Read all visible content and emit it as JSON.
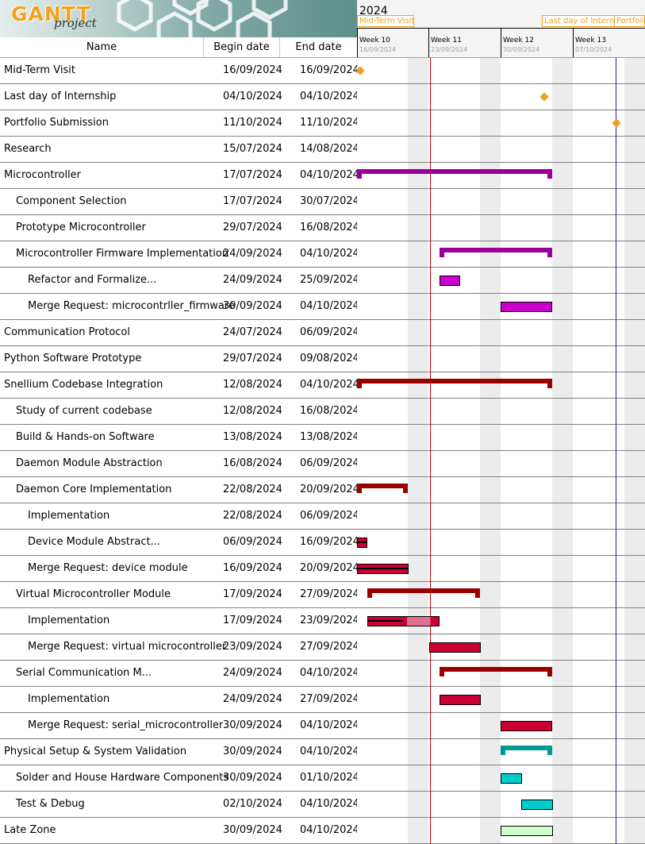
{
  "logo": {
    "title": "GANTT",
    "subtitle": "project"
  },
  "columns": {
    "name": "Name",
    "begin": "Begin date",
    "end": "End date"
  },
  "timeline": {
    "year": "2024",
    "milestone_tags": [
      "Mid-Term Visit",
      "Last day of Interns",
      "Portfolio"
    ],
    "weeks": [
      {
        "label": "Week 10",
        "date": "16/09/2024"
      },
      {
        "label": "Week 11",
        "date": "23/09/2024"
      },
      {
        "label": "Week 12",
        "date": "30/09/2024"
      },
      {
        "label": "Week 13",
        "date": "07/10/2024"
      }
    ]
  },
  "colors": {
    "milestone": "#f0a020",
    "microcontroller": "#990099",
    "microcontroller_task": "#cc00cc",
    "snellium": "#990000",
    "snellium_task": "#cc0033",
    "physical": "#009999",
    "physical_task": "#00cccc",
    "late_zone": "#ccffcc",
    "today_line": "#c00000",
    "project_line": "#1a1ab0"
  },
  "tasks": [
    {
      "name": "Mid-Term Visit",
      "level": 0,
      "begin": "16/09/2024",
      "end": "16/09/2024",
      "kind": "milestone"
    },
    {
      "name": "Last day of Internship",
      "level": 0,
      "begin": "04/10/2024",
      "end": "04/10/2024",
      "kind": "milestone"
    },
    {
      "name": "Portfolio Submission",
      "level": 0,
      "begin": "11/10/2024",
      "end": "11/10/2024",
      "kind": "milestone"
    },
    {
      "name": "Research",
      "level": 0,
      "begin": "15/07/2024",
      "end": "14/08/2024",
      "kind": "summary"
    },
    {
      "name": "Microcontroller",
      "level": 0,
      "begin": "17/07/2024",
      "end": "04/10/2024",
      "kind": "summary"
    },
    {
      "name": "Component Selection",
      "level": 1,
      "begin": "17/07/2024",
      "end": "30/07/2024",
      "kind": "task"
    },
    {
      "name": "Prototype Microcontroller",
      "level": 1,
      "begin": "29/07/2024",
      "end": "16/08/2024",
      "kind": "task"
    },
    {
      "name": "Microcontroller Firmware Implementation",
      "level": 1,
      "begin": "24/09/2024",
      "end": "04/10/2024",
      "kind": "summary"
    },
    {
      "name": "Refactor and Formalize...",
      "level": 2,
      "begin": "24/09/2024",
      "end": "25/09/2024",
      "kind": "task"
    },
    {
      "name": "Merge Request: microcontrller_firmware",
      "level": 2,
      "begin": "30/09/2024",
      "end": "04/10/2024",
      "kind": "task"
    },
    {
      "name": "Communication Protocol",
      "level": 0,
      "begin": "24/07/2024",
      "end": "06/09/2024",
      "kind": "task"
    },
    {
      "name": "Python Software Prototype",
      "level": 0,
      "begin": "29/07/2024",
      "end": "09/08/2024",
      "kind": "task"
    },
    {
      "name": "Snellium Codebase Integration",
      "level": 0,
      "begin": "12/08/2024",
      "end": "04/10/2024",
      "kind": "summary"
    },
    {
      "name": "Study of current codebase",
      "level": 1,
      "begin": "12/08/2024",
      "end": "16/08/2024",
      "kind": "task"
    },
    {
      "name": "Build & Hands-on Software",
      "level": 1,
      "begin": "13/08/2024",
      "end": "13/08/2024",
      "kind": "task"
    },
    {
      "name": "Daemon Module Abstraction",
      "level": 1,
      "begin": "16/08/2024",
      "end": "06/09/2024",
      "kind": "task"
    },
    {
      "name": "Daemon Core Implementation",
      "level": 1,
      "begin": "22/08/2024",
      "end": "20/09/2024",
      "kind": "summary"
    },
    {
      "name": "Implementation",
      "level": 2,
      "begin": "22/08/2024",
      "end": "06/09/2024",
      "kind": "task"
    },
    {
      "name": "Device Module Abstract...",
      "level": 2,
      "begin": "06/09/2024",
      "end": "16/09/2024",
      "kind": "task"
    },
    {
      "name": "Merge Request: device module",
      "level": 2,
      "begin": "16/09/2024",
      "end": "20/09/2024",
      "kind": "task"
    },
    {
      "name": "Virtual Microcontroller Module",
      "level": 1,
      "begin": "17/09/2024",
      "end": "27/09/2024",
      "kind": "summary"
    },
    {
      "name": "Implementation",
      "level": 2,
      "begin": "17/09/2024",
      "end": "23/09/2024",
      "kind": "task"
    },
    {
      "name": "Merge Request: virtual microcontroller",
      "level": 2,
      "begin": "23/09/2024",
      "end": "27/09/2024",
      "kind": "task"
    },
    {
      "name": "Serial Communication M...",
      "level": 1,
      "begin": "24/09/2024",
      "end": "04/10/2024",
      "kind": "summary"
    },
    {
      "name": "Implementation",
      "level": 2,
      "begin": "24/09/2024",
      "end": "27/09/2024",
      "kind": "task"
    },
    {
      "name": "Merge Request: serial_microcontroller",
      "level": 2,
      "begin": "30/09/2024",
      "end": "04/10/2024",
      "kind": "task"
    },
    {
      "name": "Physical Setup & System Validation",
      "level": 0,
      "begin": "30/09/2024",
      "end": "04/10/2024",
      "kind": "summary"
    },
    {
      "name": "Solder and House Hardware Components",
      "level": 1,
      "begin": "30/09/2024",
      "end": "01/10/2024",
      "kind": "task"
    },
    {
      "name": "Test & Debug",
      "level": 1,
      "begin": "02/10/2024",
      "end": "04/10/2024",
      "kind": "task"
    },
    {
      "name": "Late Zone",
      "level": 0,
      "begin": "30/09/2024",
      "end": "04/10/2024",
      "kind": "task"
    }
  ]
}
